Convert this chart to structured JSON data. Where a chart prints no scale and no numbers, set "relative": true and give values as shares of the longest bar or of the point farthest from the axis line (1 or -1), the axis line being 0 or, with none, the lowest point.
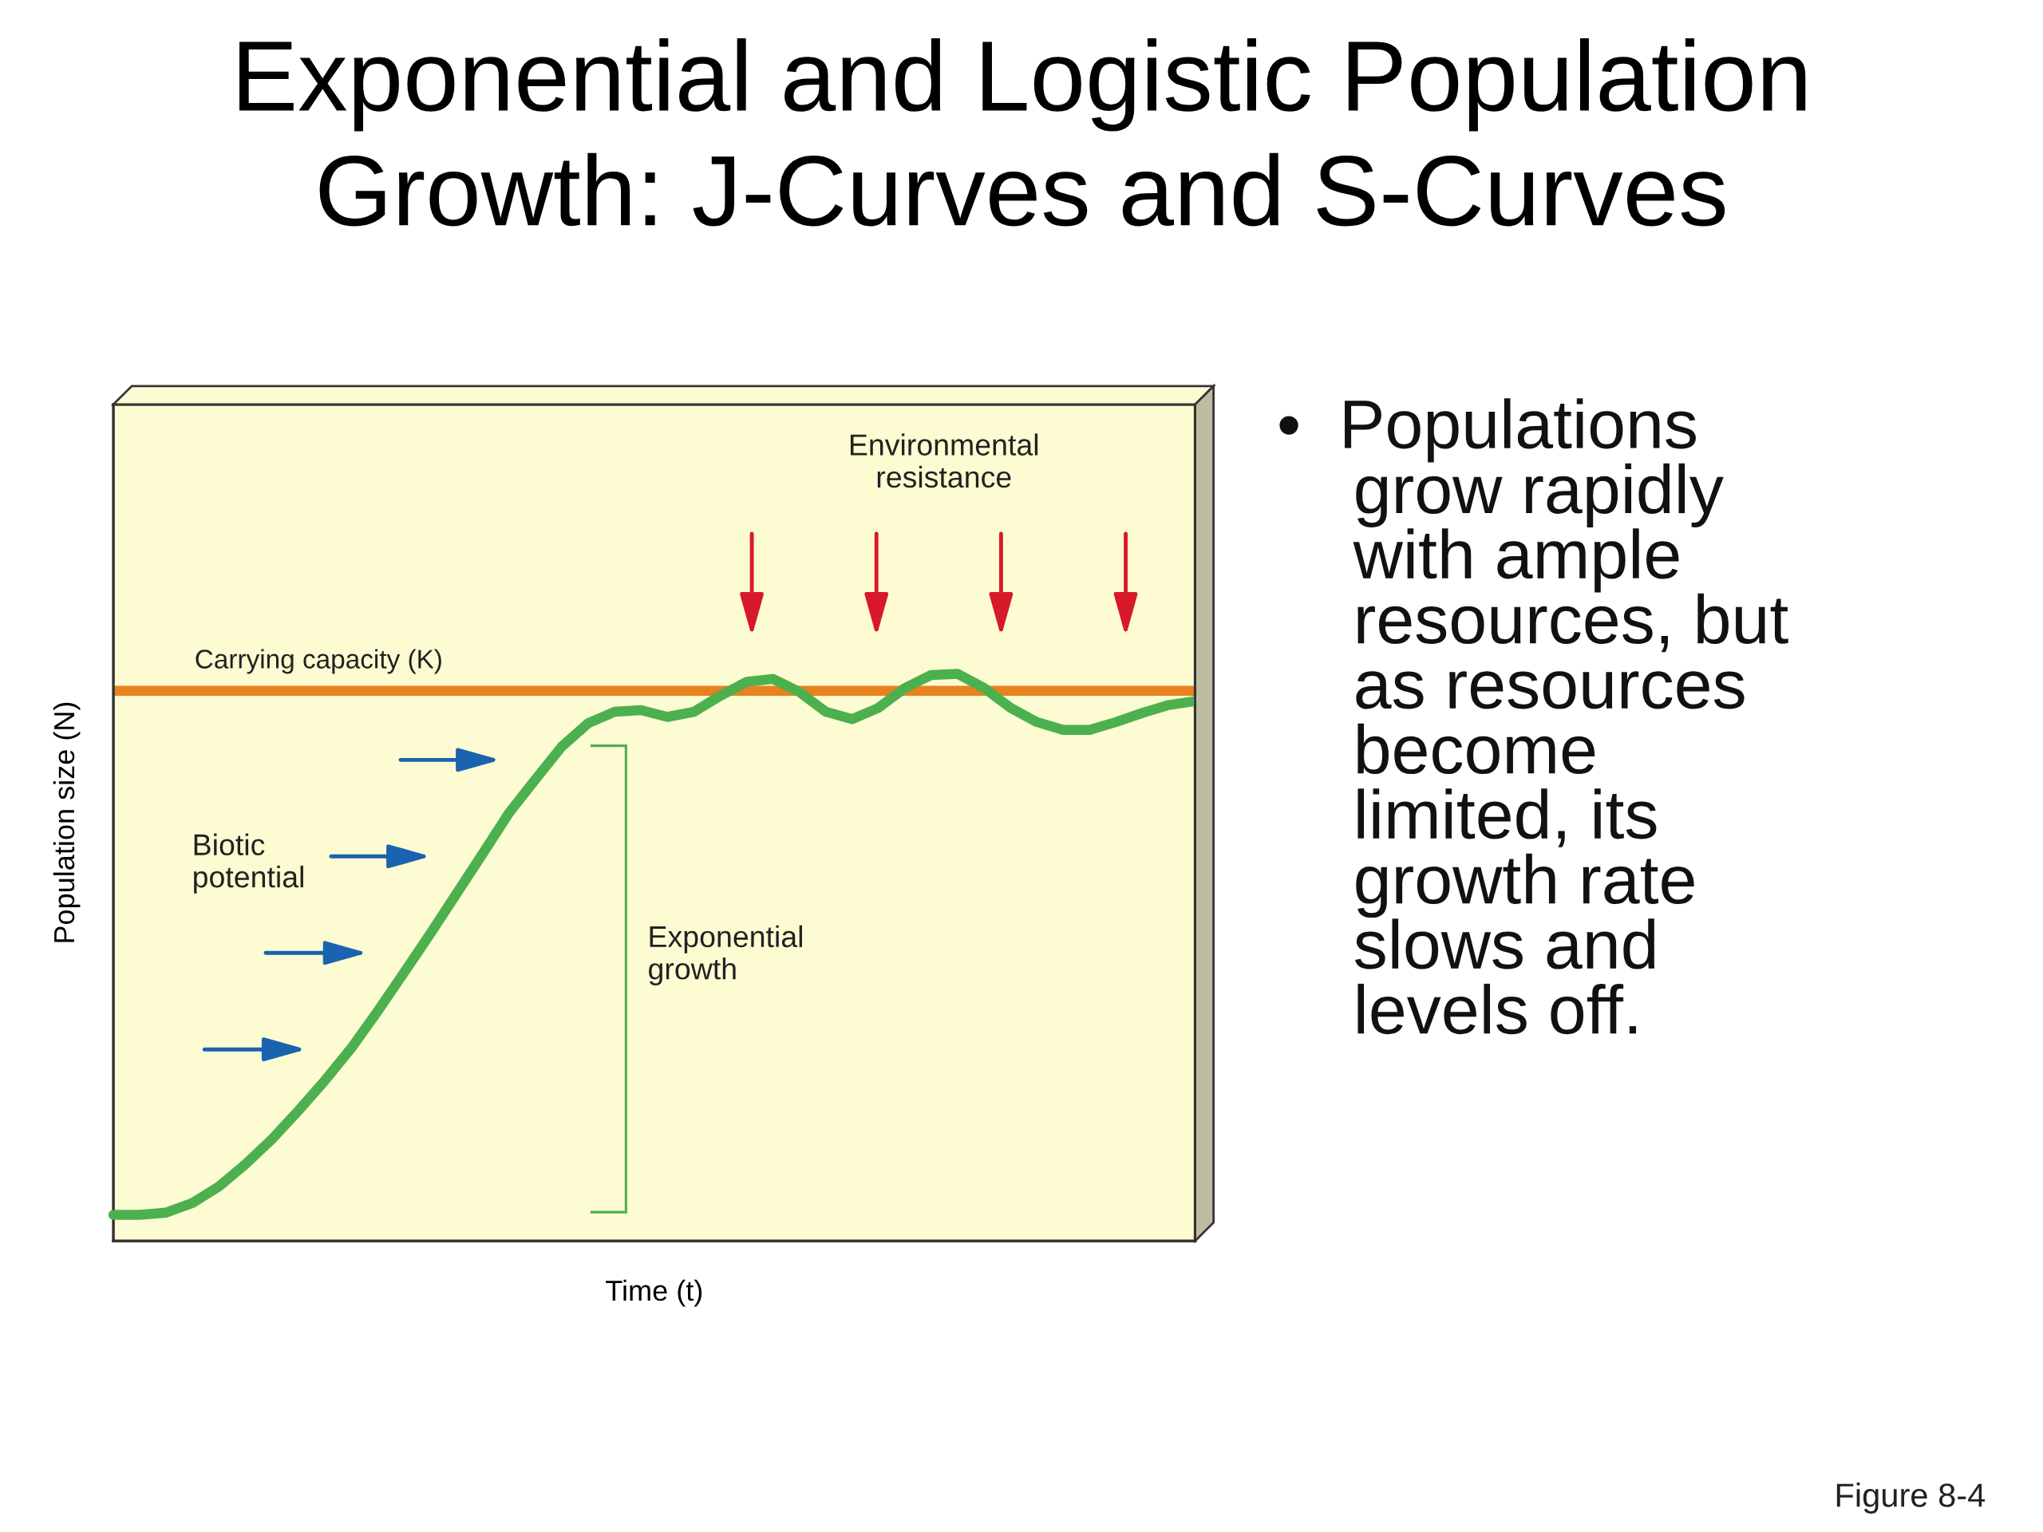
{
  "chart_data": {
    "type": "line",
    "title": "Exponential and Logistic Population\nGrowth: J-Curves and S-Curves",
    "xlabel": "Time (t)",
    "ylabel": "Population size (N)",
    "relative": true,
    "legend": false,
    "line_style": "solid",
    "categories": [
      null,
      null,
      null,
      null,
      null,
      null,
      null,
      null,
      null,
      null,
      null,
      null,
      null,
      null,
      null,
      null,
      null,
      null,
      null,
      null,
      null,
      null,
      null,
      null,
      null,
      null,
      null,
      null,
      null,
      null,
      null,
      null,
      null,
      null,
      null,
      null,
      null,
      null,
      null,
      null,
      null,
      null
    ],
    "series": [
      {
        "color": "#4cb04f",
        "values": [
          0.046,
          0.046,
          0.05,
          0.067,
          0.096,
          0.135,
          0.179,
          0.229,
          0.282,
          0.339,
          0.404,
          0.472,
          0.541,
          0.612,
          0.683,
          0.755,
          0.814,
          0.872,
          0.913,
          0.933,
          0.936,
          0.924,
          0.933,
          0.961,
          0.986,
          0.991,
          0.968,
          0.933,
          0.92,
          0.94,
          0.975,
          0.998,
          1.0,
          0.975,
          0.94,
          0.915,
          0.901,
          0.901,
          0.915,
          0.931,
          0.945,
          0.952
        ]
      }
    ],
    "ref_lines": [
      {
        "axis": "y",
        "value": 0.97,
        "label": "Carrying capacity (K)",
        "color": "#e8821e"
      }
    ],
    "annotations": [
      "Environmental\nresistance",
      "Biotic\npotential",
      "Exponential\ngrowth",
      "•  Populations\n    grow rapidly\n    with ample\n    resources, but\n    as resources\n    become\n    limited, its\n    growth rate\n    slows and\n    levels off.",
      "Figure 8-4"
    ]
  }
}
